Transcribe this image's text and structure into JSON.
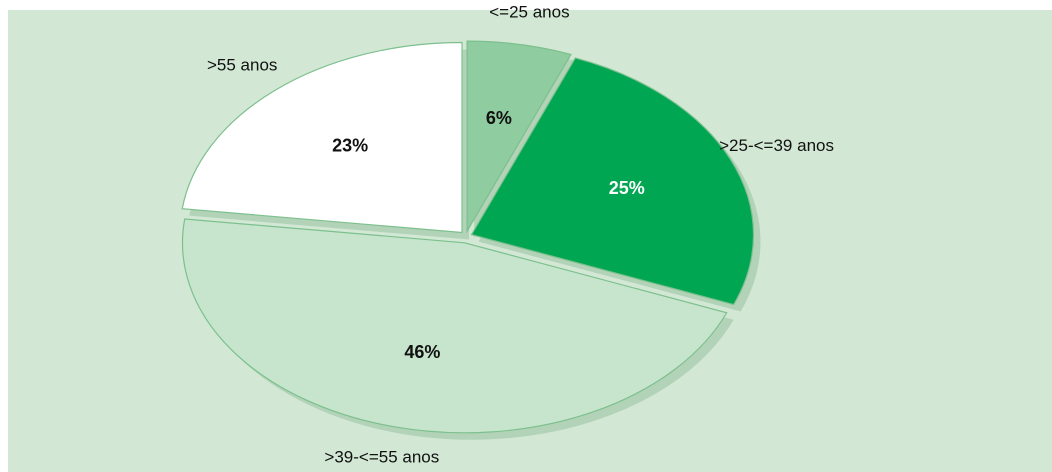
{
  "chart_data": {
    "type": "pie",
    "categories": [
      "<=25 anos",
      ">25-<=39 anos",
      ">39-<=55 anos",
      ">55 anos"
    ],
    "values": [
      6,
      25,
      46,
      23
    ],
    "value_labels": [
      "6%",
      "25%",
      "46%",
      "23%"
    ],
    "colors": [
      "#8fcc9f",
      "#00a651",
      "#c6e5cc",
      "#ffffff"
    ]
  }
}
